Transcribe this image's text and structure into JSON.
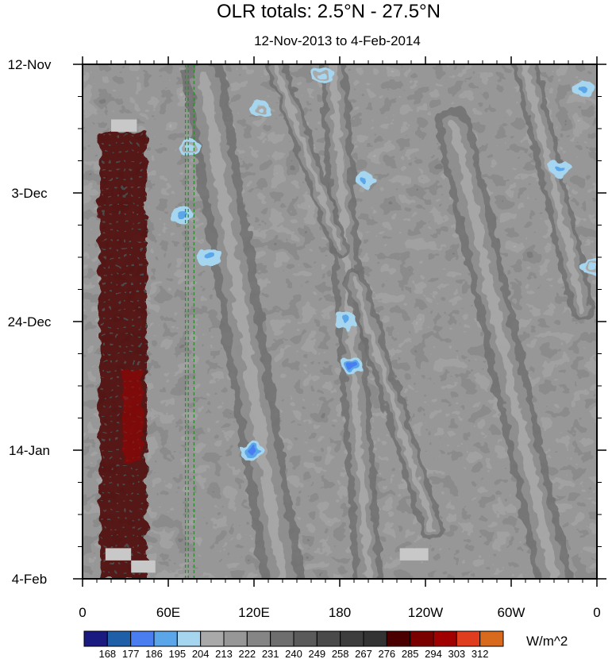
{
  "chart_data": {
    "type": "heatmap",
    "title": "OLR totals: 2.5°N - 27.5°N",
    "subtitle": "12-Nov-2013 to 4-Feb-2014",
    "xlabel": "",
    "ylabel": "",
    "x_tick_labels": [
      "0",
      "60E",
      "120E",
      "180",
      "120W",
      "60W",
      "0"
    ],
    "x_tick_lon": [
      0,
      60,
      120,
      180,
      240,
      300,
      360
    ],
    "y_tick_labels": [
      "12-Nov",
      "3-Dec",
      "24-Dec",
      "14-Jan",
      "4-Feb"
    ],
    "y_tick_day": [
      0,
      21,
      42,
      63,
      84
    ],
    "x_range_lon": [
      0,
      360
    ],
    "y_range_day": [
      0,
      84
    ],
    "colorbar": {
      "units": "W/m^2",
      "levels": [
        168,
        177,
        186,
        195,
        204,
        213,
        222,
        231,
        240,
        249,
        258,
        267,
        276,
        285,
        294,
        303,
        312
      ],
      "colors": [
        "#1a1a80",
        "#1f5fa8",
        "#4a7ef0",
        "#5aa6e8",
        "#a6d6ef",
        "#a9a9a9",
        "#979797",
        "#858585",
        "#6e6e6e",
        "#5a5a5a",
        "#4a4a4a",
        "#3d3d3d",
        "#333333",
        "#4a0000",
        "#7a0000",
        "#a00000",
        "#e03c1e",
        "#d86a1e"
      ]
    },
    "reference_lines_lon": [
      72,
      74,
      78
    ],
    "bands": [
      {
        "lon_start": 85,
        "day_start": 2,
        "lon_end": 140,
        "day_end": 84,
        "width_deg": 30,
        "kind": "convective"
      },
      {
        "lon_start": 175,
        "day_start": 0,
        "lon_end": 200,
        "day_end": 84,
        "width_deg": 20,
        "kind": "convective"
      },
      {
        "lon_start": 190,
        "day_start": 35,
        "lon_end": 245,
        "day_end": 76,
        "width_deg": 16,
        "kind": "convective"
      },
      {
        "lon_start": 260,
        "day_start": 10,
        "lon_end": 330,
        "day_end": 84,
        "width_deg": 26,
        "kind": "convective"
      },
      {
        "lon_start": 310,
        "day_start": 0,
        "lon_end": 350,
        "day_end": 40,
        "width_deg": 18,
        "kind": "convective"
      },
      {
        "lon_start": 135,
        "day_start": 0,
        "lon_end": 180,
        "day_end": 30,
        "width_deg": 14,
        "kind": "convective"
      }
    ],
    "cold_cores": [
      {
        "lon": 70,
        "day": 24.5,
        "value": 186
      },
      {
        "lon": 89,
        "day": 31.5,
        "value": 186
      },
      {
        "lon": 119,
        "day": 63.2,
        "value": 177
      },
      {
        "lon": 184,
        "day": 41.8,
        "value": 186
      },
      {
        "lon": 188,
        "day": 49.2,
        "value": 177
      },
      {
        "lon": 197,
        "day": 19,
        "value": 186
      },
      {
        "lon": 334,
        "day": 17,
        "value": 186
      },
      {
        "lon": 350,
        "day": 4,
        "value": 186
      },
      {
        "lon": 357,
        "day": 33,
        "value": 195
      },
      {
        "lon": 125,
        "day": 7.3,
        "value": 195
      },
      {
        "lon": 168,
        "day": 2,
        "value": 195
      },
      {
        "lon": 75,
        "day": 13.5,
        "value": 195
      }
    ],
    "warm_regions": [
      {
        "lon_min": 12,
        "lon_max": 45,
        "day_min": 11,
        "day_max": 84,
        "value": 285
      },
      {
        "lon_min": 28,
        "lon_max": 42,
        "day_min": 50,
        "day_max": 65,
        "value": 294
      }
    ],
    "missing_regions": [
      {
        "lon_min": 20,
        "lon_max": 38,
        "day_min": 9,
        "day_max": 11
      },
      {
        "lon_min": 16,
        "lon_max": 34,
        "day_min": 79,
        "day_max": 81
      },
      {
        "lon_min": 34,
        "lon_max": 51,
        "day_min": 81,
        "day_max": 83
      },
      {
        "lon_min": 222,
        "lon_max": 242,
        "day_min": 79,
        "day_max": 81
      }
    ],
    "grid": false
  }
}
